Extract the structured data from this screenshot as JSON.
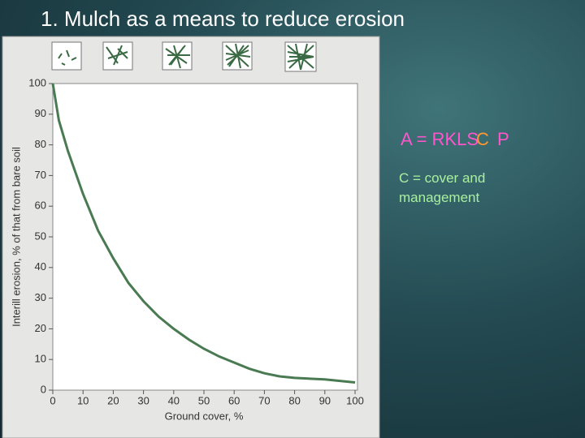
{
  "slide": {
    "title": "1. Mulch as a means to reduce erosion",
    "equation": [
      "A = RKLS",
      "C",
      "P"
    ],
    "note": "C = cover and management"
  },
  "chart_data": {
    "type": "line",
    "xlabel": "Ground cover, %",
    "ylabel": "Interill erosion, % of that from bare soil",
    "x": [
      0,
      2,
      5,
      10,
      15,
      20,
      25,
      30,
      35,
      40,
      45,
      50,
      55,
      60,
      65,
      70,
      75,
      80,
      90,
      100
    ],
    "series": [
      {
        "name": "Interill erosion",
        "color": "#4a7a52",
        "values": [
          100,
          88,
          78,
          64,
          52,
          43,
          35,
          29,
          24,
          20,
          16.5,
          13.5,
          11,
          9,
          7,
          5.5,
          4.5,
          4,
          3.5,
          2.5
        ]
      }
    ],
    "xlim": [
      0,
      100
    ],
    "xticks": [
      0,
      10,
      20,
      30,
      40,
      50,
      60,
      70,
      80,
      90,
      100
    ],
    "ylim": [
      0,
      100
    ],
    "yticks": [
      0,
      10,
      20,
      30,
      40,
      50,
      60,
      70,
      80,
      90,
      100
    ]
  }
}
